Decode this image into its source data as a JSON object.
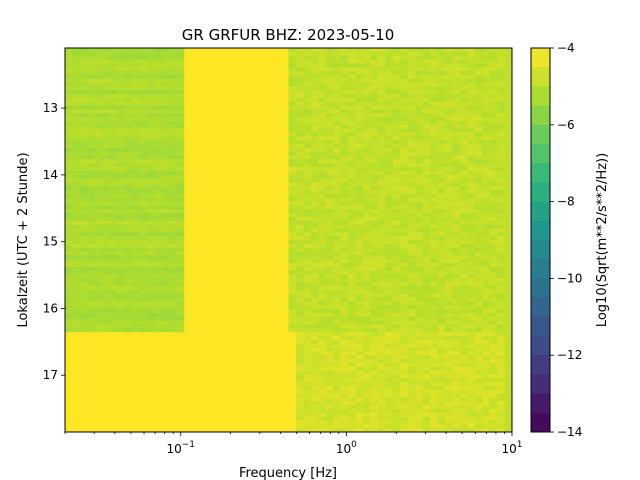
{
  "chart_data": {
    "type": "heatmap",
    "title": "GR GRFUR  BHZ: 2023-05-10",
    "xlabel": "Frequency [Hz]",
    "ylabel": "Lokalzeit (UTC + 2 Stunde)",
    "x_scale": "log",
    "xlim": [
      0.02,
      10
    ],
    "x_ticks": [
      {
        "value": 0.1,
        "base": "10",
        "exp": "−1"
      },
      {
        "value": 1,
        "base": "10",
        "exp": "0"
      },
      {
        "value": 10,
        "base": "10",
        "exp": "1"
      }
    ],
    "ylim": [
      12.1,
      17.85
    ],
    "y_inverted": true,
    "y_ticks": [
      "13",
      "14",
      "15",
      "16",
      "17"
    ],
    "colorbar": {
      "label": "Log10(Sqrt(m**2/s**2/Hz))",
      "range": [
        -14,
        -4
      ],
      "ticks": [
        "−4",
        "−6",
        "−8",
        "−10",
        "−12",
        "−14"
      ],
      "colormap": "viridis"
    },
    "description_regions": {
      "low_freq_morning_value": -5.2,
      "microseism_band_value": -4.0,
      "high_freq_value": -4.9,
      "afternoon_value": -4.0
    }
  }
}
